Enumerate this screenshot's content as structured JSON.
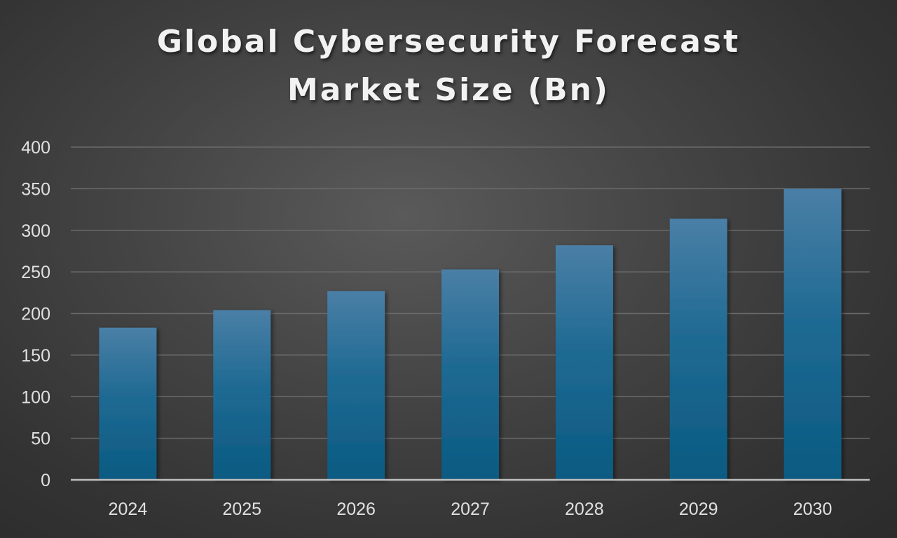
{
  "chart_data": {
    "type": "bar",
    "title": [
      "Global Cybersecurity Forecast",
      "Market Size (Bn)"
    ],
    "xlabel": "",
    "ylabel": "",
    "categories": [
      "2024",
      "2025",
      "2026",
      "2027",
      "2028",
      "2029",
      "2030"
    ],
    "values": [
      183,
      204,
      227,
      253,
      282,
      314,
      350
    ],
    "ylim": [
      0,
      400
    ],
    "yticks": [
      0,
      50,
      100,
      150,
      200,
      250,
      300,
      350,
      400
    ],
    "grid": true,
    "legend": "none",
    "colors": {
      "bar_top": "#4a7fa6",
      "bar_bottom": "#0a5a82",
      "gridline": "#6a6a6a",
      "axis": "#bfbfbf",
      "text": "#e0e0e0"
    }
  }
}
